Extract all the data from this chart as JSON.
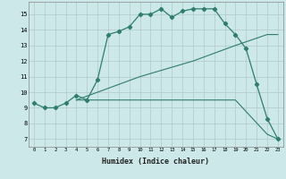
{
  "xlabel": "Humidex (Indice chaleur)",
  "ylabel": "",
  "bg_color": "#cce8e8",
  "grid_color": "#b0c8c8",
  "line_color": "#2e7d6e",
  "xlim": [
    -0.5,
    23.5
  ],
  "ylim": [
    6.5,
    15.8
  ],
  "xticks": [
    0,
    1,
    2,
    3,
    4,
    5,
    6,
    7,
    8,
    9,
    10,
    11,
    12,
    13,
    14,
    15,
    16,
    17,
    18,
    19,
    20,
    21,
    22,
    23
  ],
  "yticks": [
    7,
    8,
    9,
    10,
    11,
    12,
    13,
    14,
    15
  ],
  "curve1_x": [
    0,
    1,
    2,
    3,
    4,
    5,
    6,
    7,
    8,
    9,
    10,
    11,
    12,
    13,
    14,
    15,
    16,
    17,
    18,
    19,
    20,
    21,
    22,
    23
  ],
  "curve1_y": [
    9.3,
    9.0,
    9.0,
    9.3,
    9.8,
    9.5,
    10.8,
    13.7,
    13.9,
    14.2,
    15.0,
    15.0,
    15.35,
    14.8,
    15.2,
    15.35,
    15.35,
    15.35,
    14.4,
    13.7,
    12.8,
    10.5,
    8.3,
    7.0
  ],
  "curve2_x": [
    4,
    10,
    15,
    19,
    22,
    23
  ],
  "curve2_y": [
    9.5,
    11.0,
    12.0,
    13.0,
    13.7,
    13.7
  ],
  "curve3_x": [
    4,
    10,
    15,
    19,
    22,
    23
  ],
  "curve3_y": [
    9.5,
    9.5,
    9.5,
    9.5,
    7.3,
    7.0
  ]
}
